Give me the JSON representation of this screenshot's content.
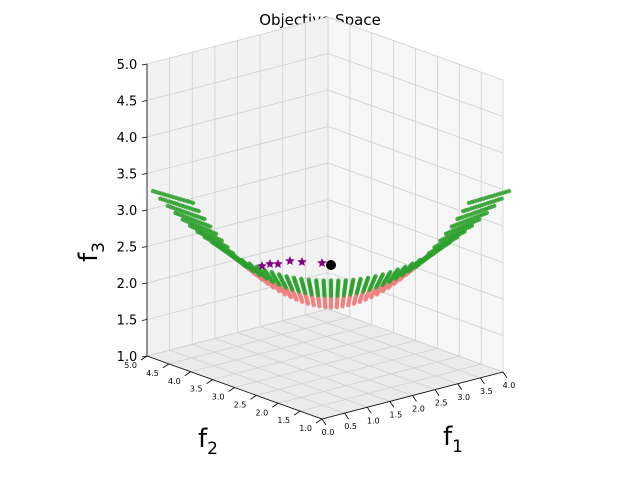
{
  "title": "Objective Space",
  "chart_data": {
    "type": "scatter",
    "title": "Objective Space",
    "projection": "3d",
    "xlabel": "f1",
    "ylabel": "f2",
    "zlabel": "f3",
    "xlim": [
      0.0,
      4.0
    ],
    "ylim": [
      1.0,
      5.0
    ],
    "zlim": [
      1.0,
      5.0
    ],
    "xticks": [
      "0.0",
      "0.5",
      "1.0",
      "1.5",
      "2.0",
      "2.5",
      "3.0",
      "3.5",
      "4.0"
    ],
    "yticks": [
      "1.0",
      "1.5",
      "2.0",
      "2.5",
      "3.0",
      "3.5",
      "4.0",
      "4.5",
      "5.0"
    ],
    "zticks": [
      "1.0",
      "1.5",
      "2.0",
      "2.5",
      "3.0",
      "3.5",
      "4.0",
      "4.5",
      "5.0"
    ],
    "grid": true,
    "colors": {
      "surface_front": "#2ca02c",
      "surface_back": "#f08080",
      "pareto_stars": "#800080",
      "ideal_point": "#000000",
      "pane": "#f2f2f2",
      "grid": "#d0d0d0"
    },
    "series": [
      {
        "marker": "dot",
        "color": "#2ca02c",
        "description_points": "parabolic trough surface, front half"
      },
      {
        "marker": "dot",
        "color": "#f08080",
        "description_points": "parabolic trough surface, back half"
      },
      {
        "marker": "star",
        "color": "#800080",
        "points": [
          {
            "x": 0.5,
            "y": 3.6,
            "z": 2.55
          },
          {
            "x": 0.7,
            "y": 3.5,
            "z": 2.5
          },
          {
            "x": 0.9,
            "y": 3.4,
            "z": 2.5
          },
          {
            "x": 1.2,
            "y": 3.1,
            "z": 2.55
          },
          {
            "x": 1.4,
            "y": 2.9,
            "z": 2.5
          },
          {
            "x": 1.9,
            "y": 2.4,
            "z": 2.5
          }
        ]
      },
      {
        "marker": "circle",
        "color": "#000000",
        "points": [
          {
            "x": 2.0,
            "y": 2.0,
            "z": 2.5
          }
        ]
      }
    ]
  }
}
